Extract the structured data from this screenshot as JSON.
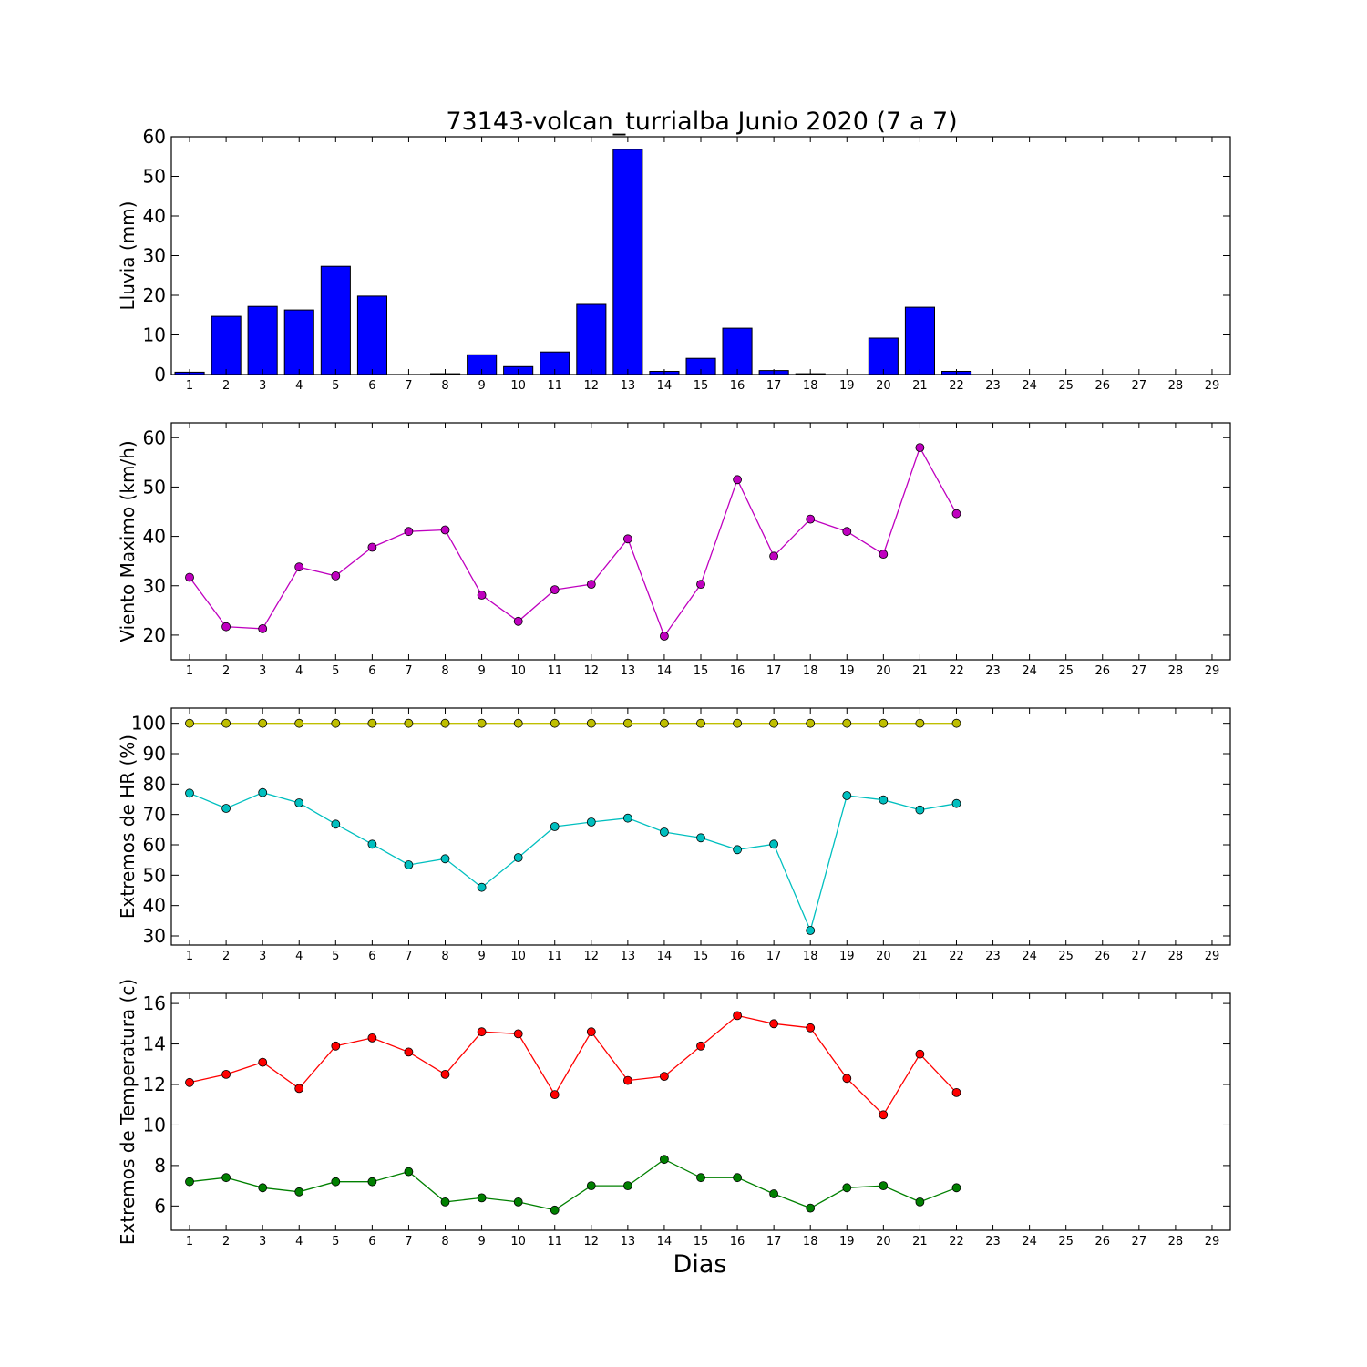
{
  "title": "73143-volcan_turrialba Junio 2020  (7 a 7)",
  "xlabel": "Dias",
  "colors": {
    "rain": "#0000ff",
    "wind": "#bf00bf",
    "hr_max": "#bfbf00",
    "hr_min": "#00bfbf",
    "temp_max": "#ff0000",
    "temp_min": "#008000"
  },
  "chart_data": [
    {
      "type": "bar",
      "ylabel": "Lluvia (mm)",
      "ylim": [
        0,
        60
      ],
      "yticks": [
        0,
        10,
        20,
        30,
        40,
        50,
        60
      ],
      "xlim": [
        0.5,
        29.5
      ],
      "xticks": [
        1,
        2,
        3,
        4,
        5,
        6,
        7,
        8,
        9,
        10,
        11,
        12,
        13,
        14,
        15,
        16,
        17,
        18,
        19,
        20,
        21,
        22,
        23,
        24,
        25,
        26,
        27,
        28,
        29
      ],
      "x": [
        1,
        2,
        3,
        4,
        5,
        6,
        7,
        8,
        9,
        10,
        11,
        12,
        13,
        14,
        15,
        16,
        17,
        18,
        19,
        20,
        21,
        22
      ],
      "series": [
        {
          "values": [
            0.6,
            14.7,
            17.2,
            16.3,
            27.3,
            19.8,
            0,
            0.2,
            5.0,
            2.0,
            5.7,
            17.7,
            56.8,
            0.8,
            4.1,
            11.7,
            1.0,
            0.2,
            0,
            9.2,
            17.0,
            0.8
          ],
          "color": "#0000ff"
        }
      ],
      "grid": false
    },
    {
      "type": "line",
      "ylabel": "Viento Maximo (km/h)",
      "ylim": [
        15,
        63
      ],
      "yticks": [
        20,
        30,
        40,
        50,
        60
      ],
      "xlim": [
        0.5,
        29.5
      ],
      "xticks": [
        1,
        2,
        3,
        4,
        5,
        6,
        7,
        8,
        9,
        10,
        11,
        12,
        13,
        14,
        15,
        16,
        17,
        18,
        19,
        20,
        21,
        22,
        23,
        24,
        25,
        26,
        27,
        28,
        29
      ],
      "x": [
        1,
        2,
        3,
        4,
        5,
        6,
        7,
        8,
        9,
        10,
        11,
        12,
        13,
        14,
        15,
        16,
        17,
        18,
        19,
        20,
        21,
        22
      ],
      "series": [
        {
          "values": [
            31.7,
            21.7,
            21.3,
            33.8,
            32.0,
            37.8,
            41.0,
            41.3,
            28.1,
            22.8,
            29.2,
            30.3,
            39.5,
            19.8,
            30.3,
            51.5,
            36.0,
            43.5,
            41.0,
            36.4,
            58.0,
            44.6
          ],
          "color": "#bf00bf"
        }
      ],
      "grid": false
    },
    {
      "type": "line",
      "ylabel": "Extremos de HR (%)",
      "ylim": [
        27,
        105
      ],
      "yticks": [
        30,
        40,
        50,
        60,
        70,
        80,
        90,
        100
      ],
      "xlim": [
        0.5,
        29.5
      ],
      "xticks": [
        1,
        2,
        3,
        4,
        5,
        6,
        7,
        8,
        9,
        10,
        11,
        12,
        13,
        14,
        15,
        16,
        17,
        18,
        19,
        20,
        21,
        22,
        23,
        24,
        25,
        26,
        27,
        28,
        29
      ],
      "x": [
        1,
        2,
        3,
        4,
        5,
        6,
        7,
        8,
        9,
        10,
        11,
        12,
        13,
        14,
        15,
        16,
        17,
        18,
        19,
        20,
        21,
        22
      ],
      "series": [
        {
          "values": [
            100,
            100,
            100,
            100,
            100,
            100,
            100,
            100,
            100,
            100,
            100,
            100,
            100,
            100,
            100,
            100,
            100,
            100,
            100,
            100,
            100,
            100
          ],
          "color": "#bfbf00"
        },
        {
          "values": [
            77,
            72,
            77.2,
            73.8,
            66.8,
            60.2,
            53.4,
            55.4,
            46.0,
            55.8,
            66.0,
            67.5,
            68.8,
            64.2,
            62.3,
            58.4,
            60.2,
            31.8,
            76.2,
            74.8,
            71.5,
            73.6
          ],
          "color": "#00bfbf"
        }
      ],
      "grid": false
    },
    {
      "type": "line",
      "ylabel": "Extremos de Temperatura (c)",
      "ylim": [
        4.8,
        16.5
      ],
      "yticks": [
        6,
        8,
        10,
        12,
        14,
        16
      ],
      "xlim": [
        0.5,
        29.5
      ],
      "xticks": [
        1,
        2,
        3,
        4,
        5,
        6,
        7,
        8,
        9,
        10,
        11,
        12,
        13,
        14,
        15,
        16,
        17,
        18,
        19,
        20,
        21,
        22,
        23,
        24,
        25,
        26,
        27,
        28,
        29
      ],
      "x": [
        1,
        2,
        3,
        4,
        5,
        6,
        7,
        8,
        9,
        10,
        11,
        12,
        13,
        14,
        15,
        16,
        17,
        18,
        19,
        20,
        21,
        22
      ],
      "series": [
        {
          "values": [
            12.1,
            12.5,
            13.1,
            11.8,
            13.9,
            14.3,
            13.6,
            12.5,
            14.6,
            14.5,
            11.5,
            14.6,
            12.2,
            12.4,
            13.9,
            15.4,
            15.0,
            14.8,
            12.3,
            10.5,
            13.5,
            11.6
          ],
          "color": "#ff0000"
        },
        {
          "values": [
            7.2,
            7.4,
            6.9,
            6.7,
            7.2,
            7.2,
            7.7,
            6.2,
            6.4,
            6.2,
            5.8,
            7.0,
            7.0,
            8.3,
            7.4,
            7.4,
            6.6,
            5.9,
            6.9,
            7.0,
            6.2,
            6.9
          ],
          "color": "#008000"
        }
      ],
      "grid": false
    }
  ]
}
